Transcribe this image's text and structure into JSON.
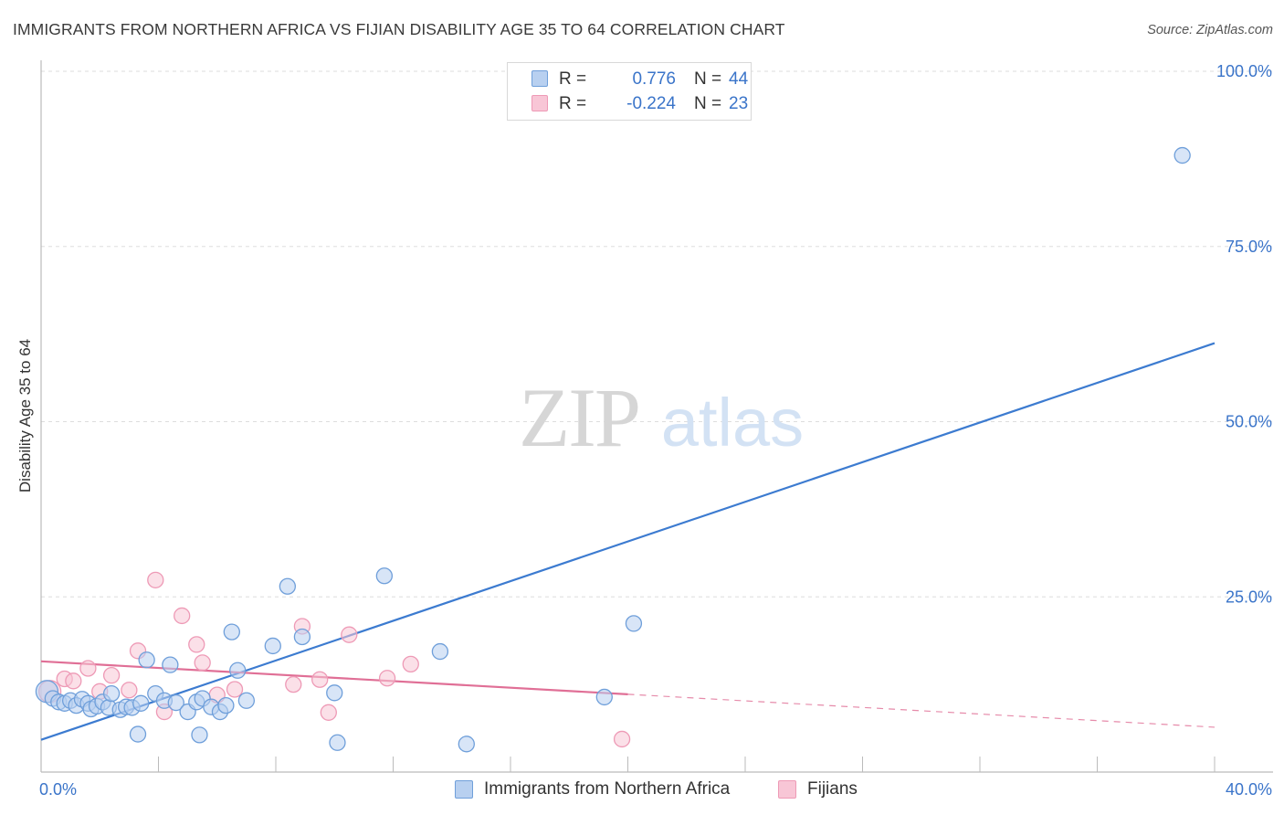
{
  "header": {
    "title": "IMMIGRANTS FROM NORTHERN AFRICA VS FIJIAN DISABILITY AGE 35 TO 64 CORRELATION CHART",
    "source": "Source: ZipAtlas.com"
  },
  "watermark": {
    "zip": "ZIP",
    "atlas": "atlas"
  },
  "legend_top": {
    "rows": [
      {
        "r_label": "R =",
        "r_value": "0.776",
        "n_label": "N =",
        "n_value": "44",
        "color": "#b8d0f0"
      },
      {
        "r_label": "R =",
        "r_value": "-0.224",
        "n_label": "N =",
        "n_value": "23",
        "color": "#f8c6d6"
      }
    ]
  },
  "legend_bottom": {
    "items": [
      {
        "label": "Immigrants from Northern Africa",
        "color": "#b8d0f0"
      },
      {
        "label": "Fijians",
        "color": "#f8c6d6"
      }
    ]
  },
  "colors": {
    "blue_fill": "#b8d0f0",
    "blue_stroke": "#6f9fda",
    "blue_line": "#3c7bd0",
    "pink_fill": "#f8c6d6",
    "pink_stroke": "#ee9ab6",
    "pink_line": "#e06f96",
    "tick_label": "#3a74c9",
    "grid": "#dddddd"
  },
  "chart_data": {
    "type": "scatter",
    "title": "IMMIGRANTS FROM NORTHERN AFRICA VS FIJIAN DISABILITY AGE 35 TO 64 CORRELATION CHART",
    "xlabel": "",
    "ylabel": "Disability Age 35 to 64",
    "xlim": [
      0,
      40
    ],
    "ylim": [
      0,
      100
    ],
    "x_tick_labels": [
      {
        "value": 0,
        "label": "0.0%"
      },
      {
        "value": 40,
        "label": "40.0%"
      }
    ],
    "y_tick_labels": [
      {
        "value": 25,
        "label": "25.0%"
      },
      {
        "value": 50,
        "label": "50.0%"
      },
      {
        "value": 75,
        "label": "75.0%"
      },
      {
        "value": 100,
        "label": "100.0%"
      }
    ],
    "x_minor_ticks": [
      4,
      8,
      12,
      16,
      20,
      24,
      28,
      32,
      36,
      40
    ],
    "series": [
      {
        "name": "Immigrants from Northern Africa",
        "r": 0.776,
        "n": 44,
        "trend": {
          "x": [
            0,
            40
          ],
          "y": [
            4.6,
            61.2
          ],
          "dashed_from": null
        },
        "points": [
          [
            0.2,
            11.5
          ],
          [
            0.4,
            10.5
          ],
          [
            0.6,
            10.0
          ],
          [
            0.8,
            9.8
          ],
          [
            1.0,
            10.2
          ],
          [
            1.2,
            9.5
          ],
          [
            1.4,
            10.4
          ],
          [
            1.6,
            9.8
          ],
          [
            1.7,
            9.0
          ],
          [
            1.9,
            9.4
          ],
          [
            2.1,
            10.0
          ],
          [
            2.3,
            9.2
          ],
          [
            2.4,
            11.2
          ],
          [
            2.7,
            8.9
          ],
          [
            2.9,
            9.3
          ],
          [
            3.1,
            9.2
          ],
          [
            3.3,
            5.4
          ],
          [
            3.4,
            9.8
          ],
          [
            3.6,
            16.0
          ],
          [
            3.9,
            11.2
          ],
          [
            4.2,
            10.2
          ],
          [
            4.4,
            15.3
          ],
          [
            4.6,
            9.9
          ],
          [
            5.0,
            8.6
          ],
          [
            5.3,
            10.0
          ],
          [
            5.4,
            5.3
          ],
          [
            5.5,
            10.5
          ],
          [
            5.8,
            9.3
          ],
          [
            6.1,
            8.6
          ],
          [
            6.3,
            9.5
          ],
          [
            6.5,
            20.0
          ],
          [
            6.7,
            14.5
          ],
          [
            7.0,
            10.2
          ],
          [
            7.9,
            18.0
          ],
          [
            8.4,
            26.5
          ],
          [
            8.9,
            19.3
          ],
          [
            10.0,
            11.3
          ],
          [
            10.1,
            4.2
          ],
          [
            11.7,
            28.0
          ],
          [
            13.6,
            17.2
          ],
          [
            14.5,
            4.0
          ],
          [
            19.2,
            10.7
          ],
          [
            20.2,
            21.2
          ],
          [
            38.9,
            88.0
          ]
        ]
      },
      {
        "name": "Fijians",
        "r": -0.224,
        "n": 23,
        "trend": {
          "x": [
            0,
            40
          ],
          "y": [
            15.8,
            6.4
          ],
          "dashed_from": 20
        },
        "points": [
          [
            0.3,
            11.5
          ],
          [
            0.8,
            13.3
          ],
          [
            1.1,
            13.0
          ],
          [
            1.6,
            14.8
          ],
          [
            2.0,
            11.5
          ],
          [
            2.4,
            13.8
          ],
          [
            3.0,
            11.7
          ],
          [
            3.3,
            17.3
          ],
          [
            3.9,
            27.4
          ],
          [
            4.2,
            8.6
          ],
          [
            4.8,
            22.3
          ],
          [
            5.3,
            18.2
          ],
          [
            5.5,
            15.6
          ],
          [
            6.0,
            11.0
          ],
          [
            6.6,
            11.8
          ],
          [
            8.6,
            12.5
          ],
          [
            8.9,
            20.8
          ],
          [
            9.5,
            13.2
          ],
          [
            9.8,
            8.5
          ],
          [
            10.5,
            19.6
          ],
          [
            11.8,
            13.4
          ],
          [
            12.6,
            15.4
          ],
          [
            19.8,
            4.7
          ]
        ]
      }
    ]
  }
}
